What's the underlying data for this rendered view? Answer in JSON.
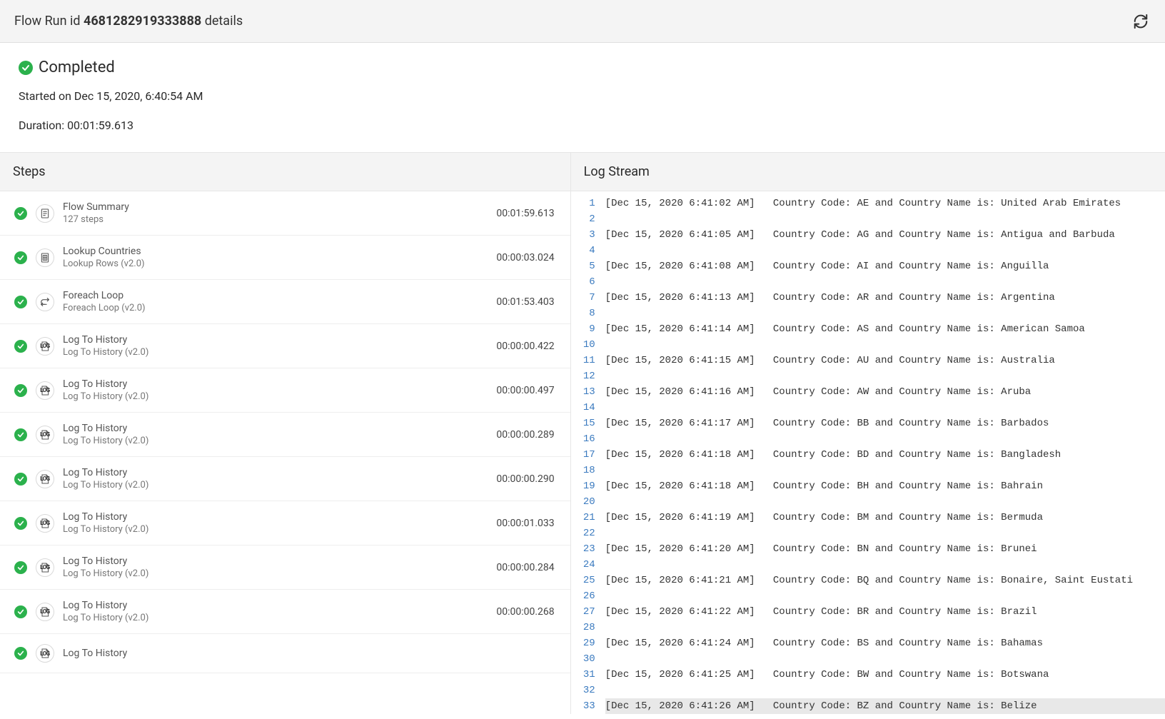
{
  "header": {
    "prefix": "Flow Run id ",
    "run_id": "4681282919333888",
    "suffix": " details"
  },
  "status": {
    "label": "Completed",
    "color": "#2bb14c"
  },
  "started_label": "Started on Dec 15, 2020, 6:40:54 AM",
  "duration_label": "Duration: 00:01:59.613",
  "panes": {
    "steps_title": "Steps",
    "log_title": "Log Stream"
  },
  "steps": [
    {
      "icon": "summary",
      "title": "Flow Summary",
      "sub": "127 steps",
      "duration": "00:01:59.613"
    },
    {
      "icon": "lookup",
      "title": "Lookup Countries",
      "sub": "Lookup Rows (v2.0)",
      "duration": "00:00:03.024"
    },
    {
      "icon": "loop",
      "title": "Foreach Loop",
      "sub": "Foreach Loop (v2.0)",
      "duration": "00:01:53.403"
    },
    {
      "icon": "log",
      "title": "Log To History",
      "sub": "Log To History (v2.0)",
      "duration": "00:00:00.422"
    },
    {
      "icon": "log",
      "title": "Log To History",
      "sub": "Log To History (v2.0)",
      "duration": "00:00:00.497"
    },
    {
      "icon": "log",
      "title": "Log To History",
      "sub": "Log To History (v2.0)",
      "duration": "00:00:00.289"
    },
    {
      "icon": "log",
      "title": "Log To History",
      "sub": "Log To History (v2.0)",
      "duration": "00:00:00.290"
    },
    {
      "icon": "log",
      "title": "Log To History",
      "sub": "Log To History (v2.0)",
      "duration": "00:00:01.033"
    },
    {
      "icon": "log",
      "title": "Log To History",
      "sub": "Log To History (v2.0)",
      "duration": "00:00:00.284"
    },
    {
      "icon": "log",
      "title": "Log To History",
      "sub": "Log To History (v2.0)",
      "duration": "00:00:00.268"
    },
    {
      "icon": "log",
      "title": "Log To History",
      "sub": "",
      "duration": ""
    }
  ],
  "log": {
    "timestamp_color": "#333333",
    "linenum_color": "#3a7abf",
    "highlight_bg": "#e8e8e8",
    "total_lines": 33,
    "entries": [
      {
        "line": 1,
        "ts": "[Dec 15, 2020 6:41:02 AM]",
        "msg": "Country Code: AE and Country Name is: United Arab Emirates"
      },
      {
        "line": 3,
        "ts": "[Dec 15, 2020 6:41:05 AM]",
        "msg": "Country Code: AG and Country Name is: Antigua and Barbuda"
      },
      {
        "line": 5,
        "ts": "[Dec 15, 2020 6:41:08 AM]",
        "msg": "Country Code: AI and Country Name is: Anguilla"
      },
      {
        "line": 7,
        "ts": "[Dec 15, 2020 6:41:13 AM]",
        "msg": "Country Code: AR and Country Name is: Argentina"
      },
      {
        "line": 9,
        "ts": "[Dec 15, 2020 6:41:14 AM]",
        "msg": "Country Code: AS and Country Name is: American Samoa"
      },
      {
        "line": 11,
        "ts": "[Dec 15, 2020 6:41:15 AM]",
        "msg": "Country Code: AU and Country Name is: Australia"
      },
      {
        "line": 13,
        "ts": "[Dec 15, 2020 6:41:16 AM]",
        "msg": "Country Code: AW and Country Name is: Aruba"
      },
      {
        "line": 15,
        "ts": "[Dec 15, 2020 6:41:17 AM]",
        "msg": "Country Code: BB and Country Name is: Barbados"
      },
      {
        "line": 17,
        "ts": "[Dec 15, 2020 6:41:18 AM]",
        "msg": "Country Code: BD and Country Name is: Bangladesh"
      },
      {
        "line": 19,
        "ts": "[Dec 15, 2020 6:41:18 AM]",
        "msg": "Country Code: BH and Country Name is: Bahrain"
      },
      {
        "line": 21,
        "ts": "[Dec 15, 2020 6:41:19 AM]",
        "msg": "Country Code: BM and Country Name is: Bermuda"
      },
      {
        "line": 23,
        "ts": "[Dec 15, 2020 6:41:20 AM]",
        "msg": "Country Code: BN and Country Name is: Brunei"
      },
      {
        "line": 25,
        "ts": "[Dec 15, 2020 6:41:21 AM]",
        "msg": "Country Code: BQ and Country Name is: Bonaire, Saint Eustati"
      },
      {
        "line": 27,
        "ts": "[Dec 15, 2020 6:41:22 AM]",
        "msg": "Country Code: BR and Country Name is: Brazil"
      },
      {
        "line": 29,
        "ts": "[Dec 15, 2020 6:41:24 AM]",
        "msg": "Country Code: BS and Country Name is: Bahamas"
      },
      {
        "line": 31,
        "ts": "[Dec 15, 2020 6:41:25 AM]",
        "msg": "Country Code: BW and Country Name is: Botswana"
      },
      {
        "line": 33,
        "ts": "[Dec 15, 2020 6:41:26 AM]",
        "msg": "Country Code: BZ and Country Name is: Belize",
        "highlight": true
      }
    ]
  }
}
